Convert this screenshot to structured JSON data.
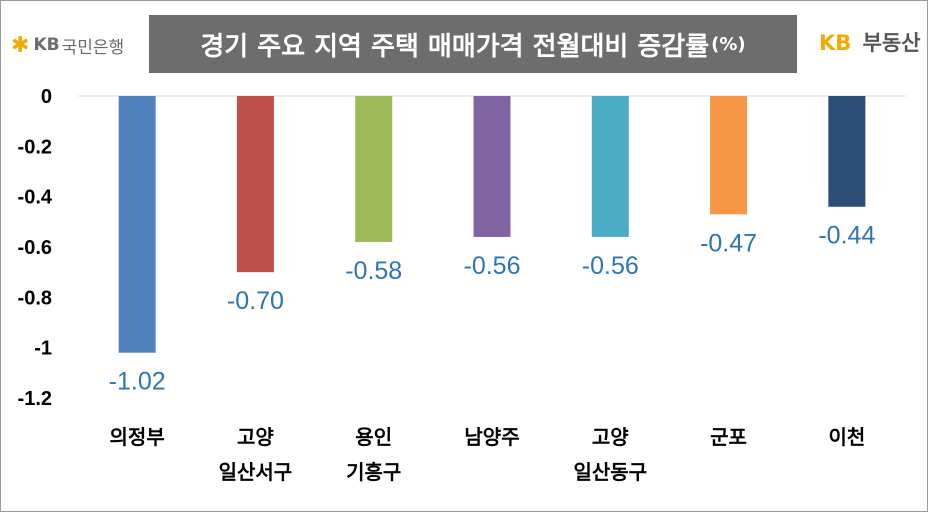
{
  "logo": {
    "bank_kb": "KB",
    "bank_name": "국민은행",
    "land_kb": "KB",
    "land_name": "부동산"
  },
  "chart_data": {
    "type": "bar",
    "title": "경기 주요 지역 주택 매매가격 전월대비 증감률",
    "title_unit": "(%)",
    "categories": [
      [
        "의정부"
      ],
      [
        "고양",
        "일산서구"
      ],
      [
        "용인",
        "기흥구"
      ],
      [
        "남양주"
      ],
      [
        "고양",
        "일산동구"
      ],
      [
        "군포"
      ],
      [
        "이천"
      ]
    ],
    "values": [
      -1.02,
      -0.7,
      -0.58,
      -0.56,
      -0.56,
      -0.47,
      -0.44
    ],
    "value_labels": [
      "-1.02",
      "-0.70",
      "-0.58",
      "-0.56",
      "-0.56",
      "-0.47",
      "-0.44"
    ],
    "colors": [
      "#4f81bd",
      "#c0504d",
      "#9bbb59",
      "#8064a2",
      "#4bacc6",
      "#f79646",
      "#2c4d75"
    ],
    "yticks": [
      0,
      -0.2,
      -0.4,
      -0.6,
      -0.8,
      -1,
      -1.2
    ],
    "ytick_labels": [
      "0",
      "-0.2",
      "-0.4",
      "-0.6",
      "-0.8",
      "-1",
      "-1.2"
    ],
    "ylim": [
      -1.2,
      0
    ],
    "grid": false,
    "legend": "none"
  }
}
